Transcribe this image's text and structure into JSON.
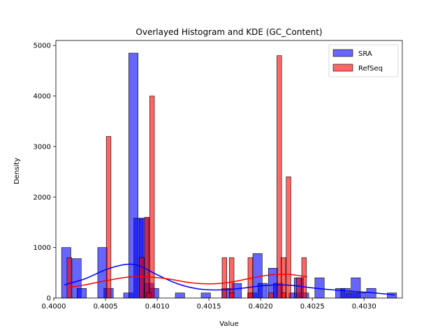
{
  "chart_data": {
    "type": "bar",
    "title": "Overlayed Histogram and KDE (GC_Content)",
    "xlabel": "Value",
    "ylabel": "Density",
    "xlim": [
      0.40002,
      0.40337
    ],
    "ylim": [
      0,
      5100
    ],
    "xticks": [
      0.4,
      0.4005,
      0.401,
      0.4015,
      0.402,
      0.4025,
      0.403
    ],
    "xtick_labels": [
      "0.4000",
      "0.4005",
      "0.4010",
      "0.4015",
      "0.4020",
      "0.4025",
      "0.4030"
    ],
    "yticks": [
      0,
      1000,
      2000,
      3000,
      4000,
      5000
    ],
    "ytick_labels": [
      "0",
      "1000",
      "2000",
      "3000",
      "4000",
      "5000"
    ],
    "grid": false,
    "legend_position": "top-right",
    "series": [
      {
        "name": "SRA",
        "color": "#0000ff",
        "kde_color": "#0000ff",
        "bin_width": 0.0001,
        "bars": [
          {
            "x": 0.40012,
            "value": 1000
          },
          {
            "x": 0.40022,
            "value": 780
          },
          {
            "x": 0.40027,
            "value": 190
          },
          {
            "x": 0.40047,
            "value": 1000
          },
          {
            "x": 0.40053,
            "value": 190
          },
          {
            "x": 0.40072,
            "value": 100
          },
          {
            "x": 0.40077,
            "value": 4850
          },
          {
            "x": 0.40082,
            "value": 1580
          },
          {
            "x": 0.40087,
            "value": 1580
          },
          {
            "x": 0.40092,
            "value": 290
          },
          {
            "x": 0.40097,
            "value": 190
          },
          {
            "x": 0.40122,
            "value": 100
          },
          {
            "x": 0.40147,
            "value": 100
          },
          {
            "x": 0.40167,
            "value": 190
          },
          {
            "x": 0.40177,
            "value": 290
          },
          {
            "x": 0.40192,
            "value": 100
          },
          {
            "x": 0.40197,
            "value": 880
          },
          {
            "x": 0.40202,
            "value": 290
          },
          {
            "x": 0.40212,
            "value": 590
          },
          {
            "x": 0.40217,
            "value": 290
          },
          {
            "x": 0.40232,
            "value": 100
          },
          {
            "x": 0.40237,
            "value": 400
          },
          {
            "x": 0.40242,
            "value": 100
          },
          {
            "x": 0.40257,
            "value": 400
          },
          {
            "x": 0.40277,
            "value": 190
          },
          {
            "x": 0.40282,
            "value": 190
          },
          {
            "x": 0.40287,
            "value": 100
          },
          {
            "x": 0.40292,
            "value": 400
          },
          {
            "x": 0.40297,
            "value": 100
          },
          {
            "x": 0.40307,
            "value": 190
          },
          {
            "x": 0.40327,
            "value": 100
          }
        ],
        "kde": {
          "x": [
            0.4001,
            0.4003,
            0.4005,
            0.40065,
            0.40075,
            0.40085,
            0.401,
            0.4012,
            0.4014,
            0.4016,
            0.4018,
            0.402,
            0.40215,
            0.4023,
            0.4025,
            0.4027,
            0.4029,
            0.4031,
            0.4033
          ],
          "y": [
            260,
            380,
            560,
            650,
            670,
            620,
            460,
            280,
            180,
            160,
            190,
            240,
            260,
            250,
            200,
            160,
            130,
            100,
            60
          ]
        }
      },
      {
        "name": "RefSeq",
        "color": "#ff0000",
        "kde_color": "#ff0000",
        "bin_width": 5e-05,
        "bars": [
          {
            "x": 0.40015,
            "value": 800
          },
          {
            "x": 0.40053,
            "value": 3200
          },
          {
            "x": 0.40085,
            "value": 800
          },
          {
            "x": 0.4009,
            "value": 1600
          },
          {
            "x": 0.40095,
            "value": 4000
          },
          {
            "x": 0.40165,
            "value": 800
          },
          {
            "x": 0.40172,
            "value": 800
          },
          {
            "x": 0.40172,
            "value": 100
          },
          {
            "x": 0.4019,
            "value": 800
          },
          {
            "x": 0.4019,
            "value": 100
          },
          {
            "x": 0.4021,
            "value": 100
          },
          {
            "x": 0.40218,
            "value": 4800
          },
          {
            "x": 0.40222,
            "value": 800
          },
          {
            "x": 0.40227,
            "value": 2400
          },
          {
            "x": 0.40237,
            "value": 400
          },
          {
            "x": 0.40242,
            "value": 800
          },
          {
            "x": 0.40222,
            "value": 100
          },
          {
            "x": 0.40092,
            "value": 100
          }
        ],
        "kde": {
          "x": [
            0.40015,
            0.4003,
            0.4005,
            0.4007,
            0.4009,
            0.4011,
            0.4013,
            0.4015,
            0.4017,
            0.4019,
            0.4021,
            0.40225,
            0.40235,
            0.40245
          ],
          "y": [
            210,
            260,
            340,
            410,
            420,
            380,
            310,
            280,
            310,
            390,
            460,
            470,
            450,
            420
          ]
        }
      }
    ]
  }
}
